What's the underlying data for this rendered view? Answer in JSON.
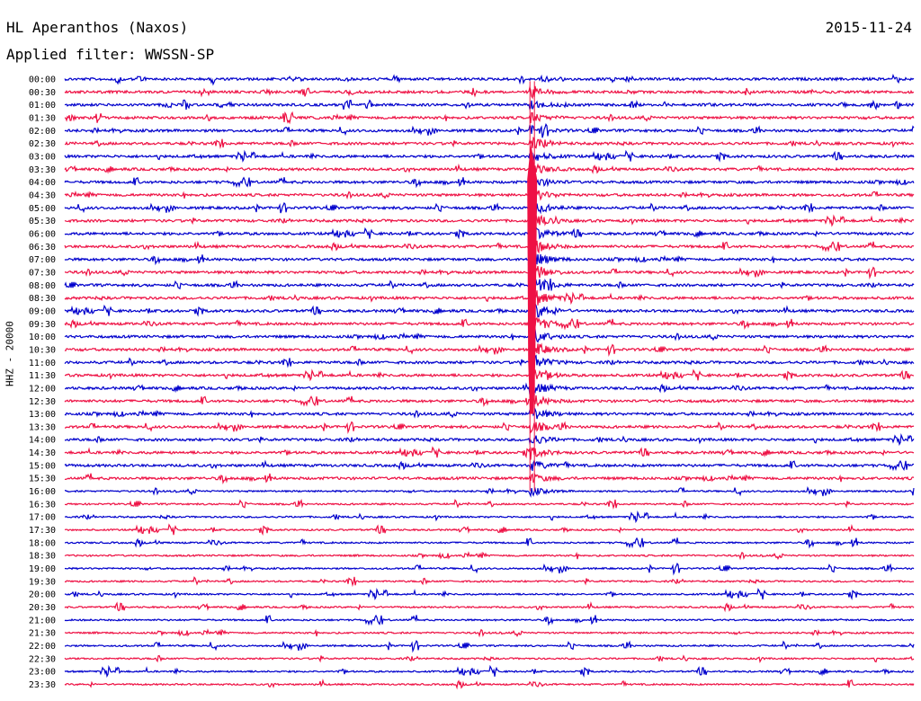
{
  "header": {
    "station": "HL Aperanthos (Naxos)",
    "date": "2015-11-24",
    "filter": "Applied filter: WWSSN-SP"
  },
  "chart_data": {
    "type": "line",
    "title": "HL Aperanthos (Naxos)",
    "channel_label": "HHZ - 20000",
    "xlabel": "",
    "ylabel": "",
    "time_labels": [
      "00:00",
      "00:30",
      "01:00",
      "01:30",
      "02:00",
      "02:30",
      "03:00",
      "03:30",
      "04:00",
      "04:30",
      "05:00",
      "05:30",
      "06:00",
      "06:30",
      "07:00",
      "07:30",
      "08:00",
      "08:30",
      "09:00",
      "09:30",
      "10:00",
      "10:30",
      "11:00",
      "11:30",
      "12:00",
      "12:30",
      "13:00",
      "13:30",
      "14:00",
      "14:30",
      "15:00",
      "15:30",
      "16:00",
      "16:30",
      "17:00",
      "17:30",
      "18:00",
      "18:30",
      "19:00",
      "19:30",
      "20:00",
      "20:30",
      "21:00",
      "21:30",
      "22:00",
      "22:30",
      "23:00",
      "23:30"
    ],
    "trace_colors": [
      "#0000cc",
      "#ee1144"
    ],
    "minutes_per_line": 30,
    "event": {
      "start_line": "00:30",
      "end_line": "16:00",
      "minute_in_line": 16.5
    }
  }
}
